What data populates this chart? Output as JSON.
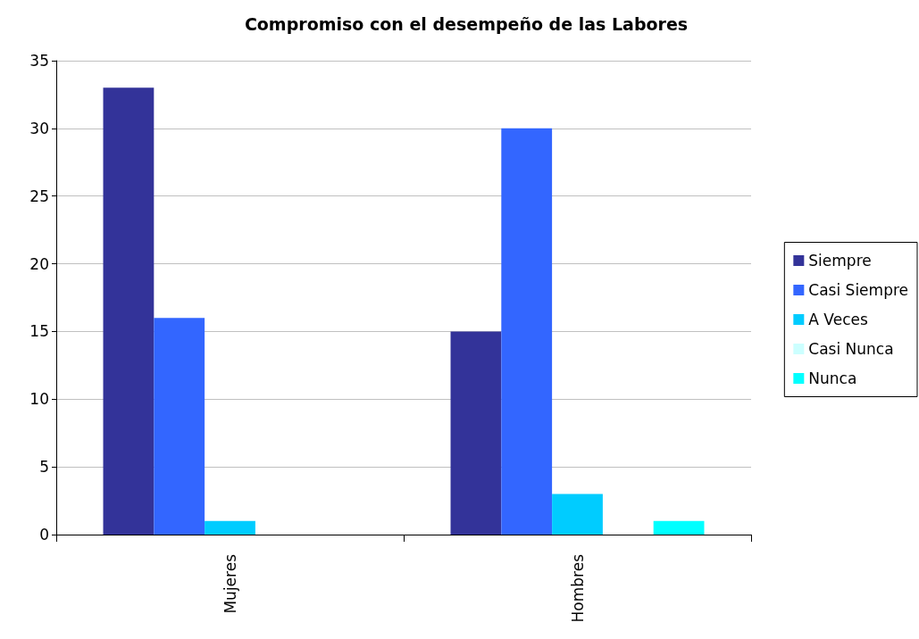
{
  "chart_data": {
    "type": "bar",
    "title": "Compromiso con el desempeño de las Labores",
    "categories": [
      "Mujeres",
      "Hombres"
    ],
    "series": [
      {
        "name": "Siempre",
        "color": "#333399",
        "values": [
          33,
          15
        ]
      },
      {
        "name": "Casi Siempre",
        "color": "#3366ff",
        "values": [
          16,
          30
        ]
      },
      {
        "name": "A Veces",
        "color": "#00ccff",
        "values": [
          1,
          3
        ]
      },
      {
        "name": "Casi Nunca",
        "color": "#ccffff",
        "values": [
          0,
          0
        ]
      },
      {
        "name": "Nunca",
        "color": "#00ffff",
        "values": [
          0,
          1
        ]
      }
    ],
    "ylim": [
      0,
      35
    ],
    "yticks": [
      0,
      5,
      10,
      15,
      20,
      25,
      30,
      35
    ],
    "grid": "y",
    "legend": "right"
  }
}
